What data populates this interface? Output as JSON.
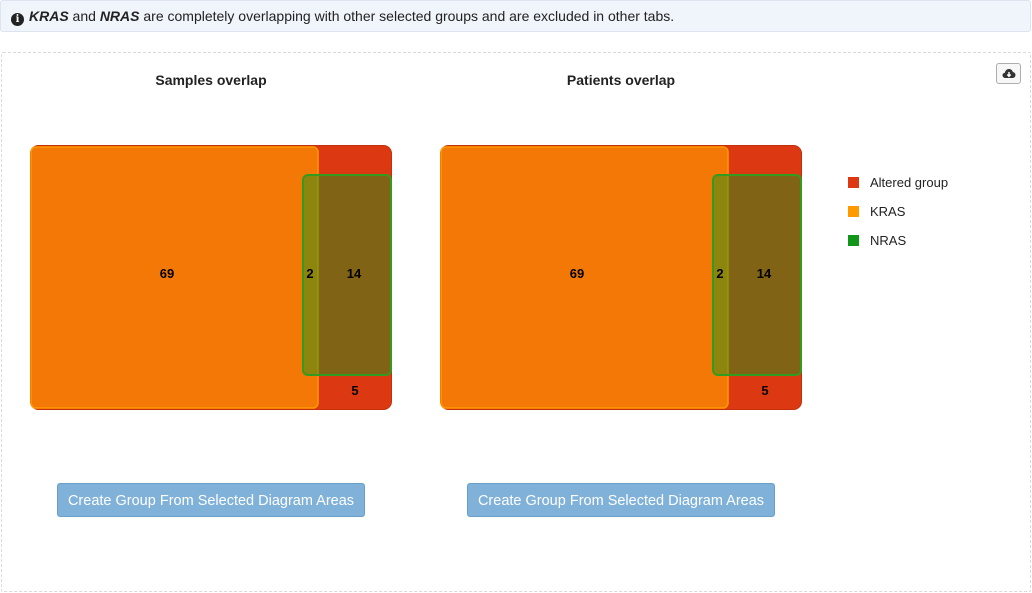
{
  "alert": {
    "gene1": "KRAS",
    "conj": " and ",
    "gene2": "NRAS",
    "message": " are completely overlapping with other selected groups and are excluded in other tabs.",
    "icon": "info-circle-icon"
  },
  "download_icon": "cloud-download-icon",
  "diagrams": [
    {
      "title": "Samples overlap",
      "regions": {
        "kras_only": "69",
        "kras_nras": "2",
        "nras_only": "14",
        "altered_only": "5"
      },
      "button_label": "Create Group From Selected Diagram Areas"
    },
    {
      "title": "Patients overlap",
      "regions": {
        "kras_only": "69",
        "kras_nras": "2",
        "nras_only": "14",
        "altered_only": "5"
      },
      "button_label": "Create Group From Selected Diagram Areas"
    }
  ],
  "legend": [
    {
      "label": "Altered group",
      "color": "#dc3912"
    },
    {
      "label": "KRAS",
      "color": "#ff9900"
    },
    {
      "label": "NRAS",
      "color": "#109618"
    }
  ]
}
